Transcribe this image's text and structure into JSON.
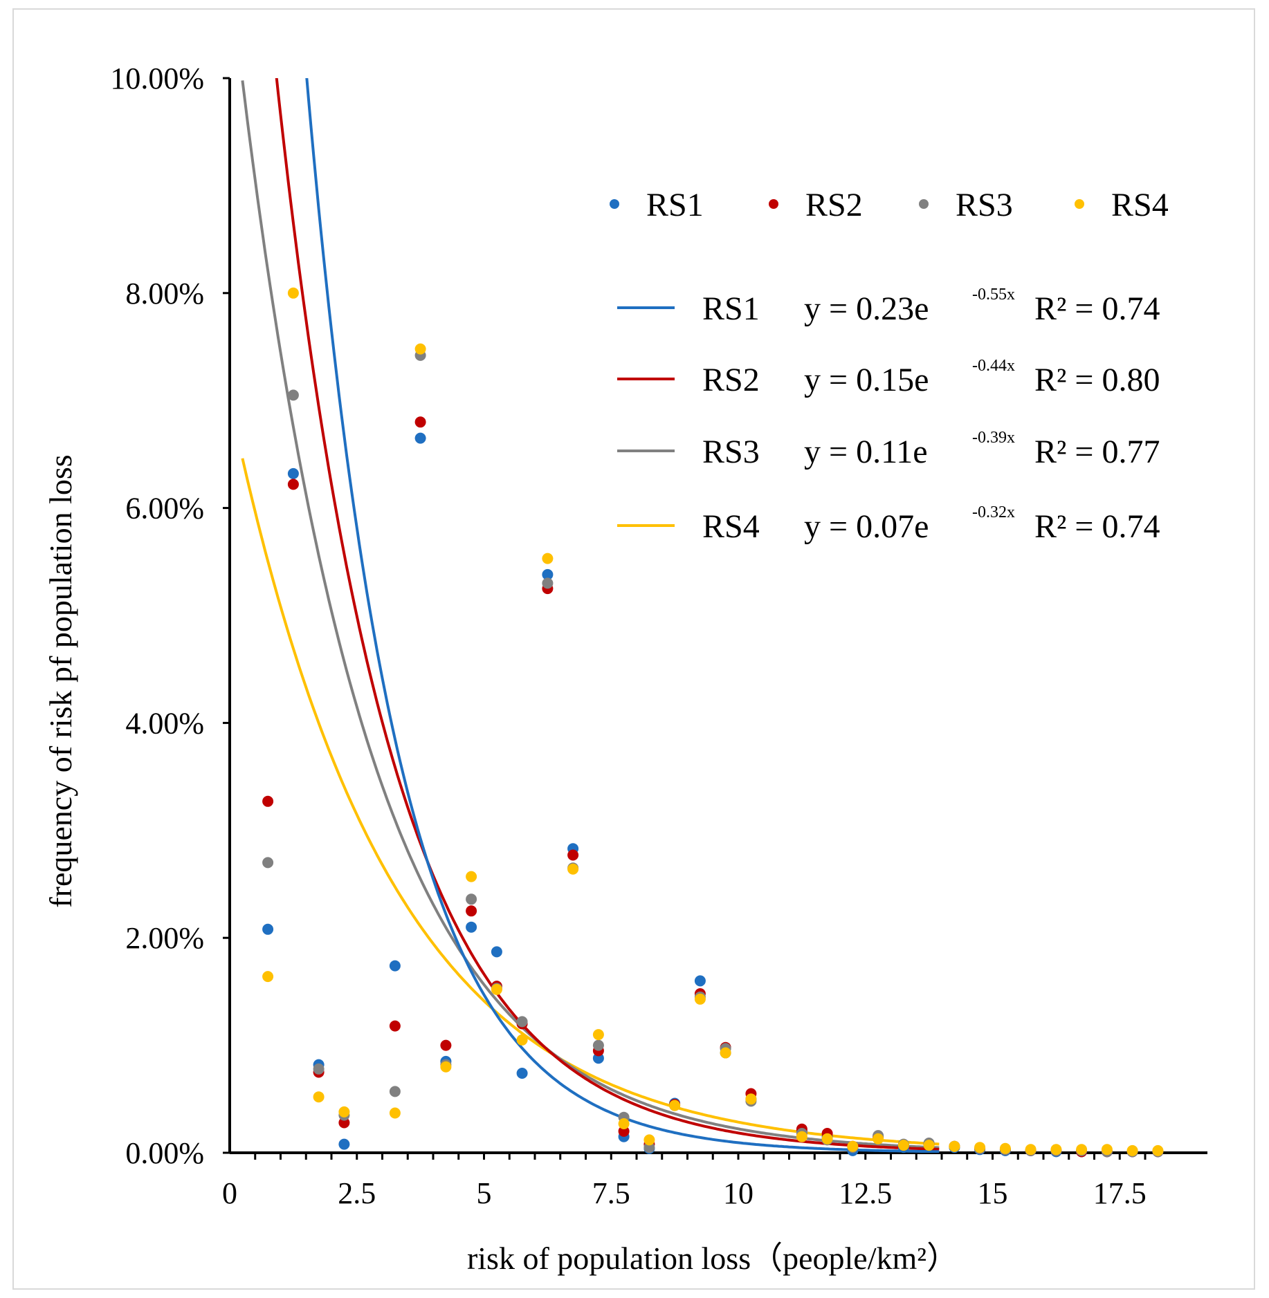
{
  "chart_data": {
    "type": "scatter",
    "xlabel": "risk of population loss（people/km²）",
    "ylabel": "frequency of risk pf population loss",
    "xlim": [
      0,
      19.5
    ],
    "ylim": [
      0,
      10
    ],
    "x_ticks": [
      "0",
      "2.5",
      "5",
      "7.5",
      "10",
      "12.5",
      "15",
      "17.5"
    ],
    "y_ticks": [
      "0.00%",
      "2.00%",
      "4.00%",
      "6.00%",
      "8.00%",
      "10.00%"
    ],
    "x": [
      0.75,
      1.25,
      1.75,
      2.25,
      3.25,
      3.75,
      4.25,
      4.75,
      5.25,
      5.75,
      6.25,
      6.75,
      7.25,
      7.75,
      8.25,
      8.75,
      9.25,
      9.75,
      10.25,
      11.25,
      11.75,
      12.25,
      12.75,
      13.25,
      13.75,
      14.25,
      14.75,
      15.25,
      15.75,
      16.25,
      16.75,
      17.25,
      17.75,
      18.25
    ],
    "series": [
      {
        "name": "RS1",
        "color": "#1f6fc1",
        "values": [
          2.08,
          6.32,
          0.82,
          0.08,
          1.74,
          6.65,
          0.85,
          2.1,
          1.87,
          0.74,
          5.38,
          2.83,
          0.88,
          0.15,
          0.04,
          0.46,
          1.6,
          0.93,
          0.5,
          0.2,
          0.15,
          0.02,
          0.14,
          0.05,
          0.08,
          0.05,
          0.03,
          0.02,
          0.02,
          0.01,
          0.01,
          0.01,
          0.01,
          0.01
        ]
      },
      {
        "name": "RS2",
        "color": "#c00000",
        "values": [
          3.27,
          6.22,
          0.75,
          0.28,
          1.18,
          6.8,
          1.0,
          2.25,
          1.55,
          1.2,
          5.25,
          2.77,
          0.95,
          0.2,
          0.08,
          0.45,
          1.48,
          0.98,
          0.55,
          0.22,
          0.18,
          0.06,
          0.15,
          0.07,
          0.08,
          0.06,
          0.04,
          0.03,
          0.02,
          0.02,
          0.01,
          0.01,
          0.01,
          0.01
        ]
      },
      {
        "name": "RS3",
        "color": "#808080",
        "values": [
          2.7,
          7.05,
          0.78,
          0.35,
          0.57,
          7.42,
          0.82,
          2.36,
          1.53,
          1.22,
          5.3,
          2.65,
          1.0,
          0.33,
          0.05,
          0.44,
          1.45,
          0.97,
          0.48,
          0.18,
          0.12,
          0.05,
          0.16,
          0.08,
          0.09,
          0.06,
          0.04,
          0.03,
          0.02,
          0.02,
          0.02,
          0.01,
          0.01,
          0.01
        ]
      },
      {
        "name": "RS4",
        "color": "#ffc000",
        "values": [
          1.64,
          8.0,
          0.52,
          0.38,
          0.37,
          7.48,
          0.8,
          2.57,
          1.52,
          1.05,
          5.53,
          2.64,
          1.1,
          0.27,
          0.12,
          0.44,
          1.43,
          0.93,
          0.5,
          0.15,
          0.13,
          0.06,
          0.13,
          0.07,
          0.07,
          0.06,
          0.05,
          0.04,
          0.03,
          0.03,
          0.03,
          0.03,
          0.02,
          0.02
        ]
      }
    ],
    "fit_lines": [
      {
        "name": "RS1",
        "color": "#1f6fc1",
        "a": 23,
        "b": 0.55,
        "equation": "y = 0.23e",
        "exponent": "-0.55x",
        "r2_text": "R² = 0.74"
      },
      {
        "name": "RS2",
        "color": "#c00000",
        "a": 15,
        "b": 0.44,
        "equation": "y = 0.15e",
        "exponent": "-0.44x",
        "r2_text": "R² = 0.80"
      },
      {
        "name": "RS3",
        "color": "#808080",
        "a": 11,
        "b": 0.39,
        "equation": "y = 0.11e",
        "exponent": "-0.39x",
        "r2_text": "R² = 0.77"
      },
      {
        "name": "RS4",
        "color": "#ffc000",
        "a": 7,
        "b": 0.32,
        "equation": "y = 0.07e",
        "exponent": "-0.32x",
        "r2_text": "R² = 0.74"
      }
    ],
    "legend_position": "top-right"
  }
}
